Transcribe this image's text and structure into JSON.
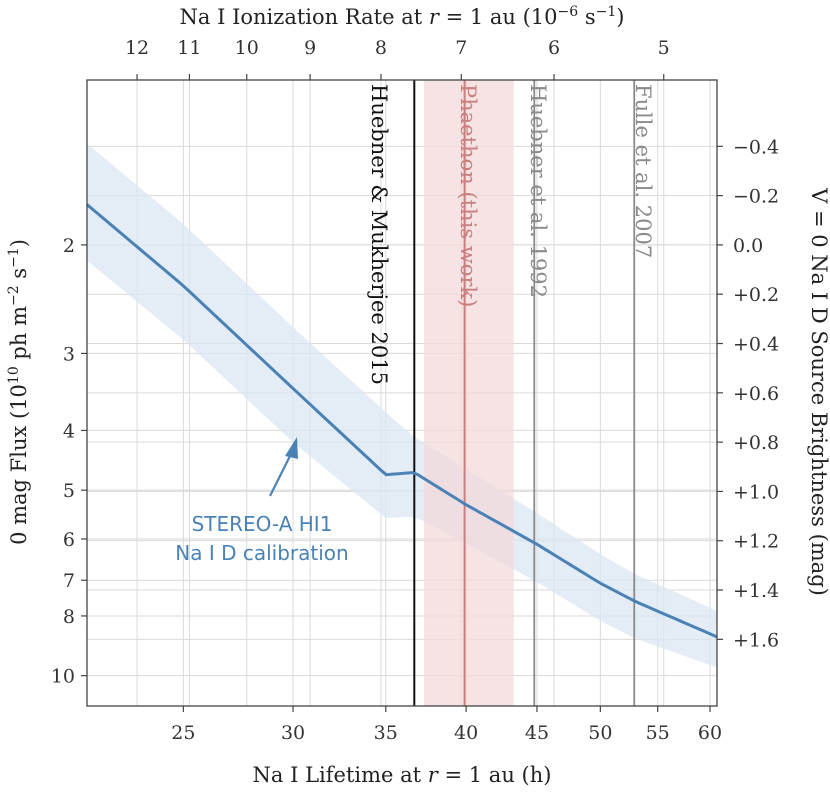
{
  "chart_data": {
    "type": "line",
    "x_axis": {
      "label": "Na I Lifetime at r = 1 au (h)",
      "label_prefix": "Na I Lifetime at ",
      "label_var": "r",
      "label_suffix": " = 1 au (h)",
      "scale": "log",
      "range": [
        21.3,
        60.7
      ],
      "ticks": [
        25,
        30,
        35,
        40,
        45,
        50,
        55,
        60
      ]
    },
    "top_axis": {
      "label_prefix": "Na I Ionization Rate at ",
      "label_var": "r",
      "label_mid": " = 1 au (10",
      "label_exp": "−6",
      "label_mid2": " s",
      "label_exp2": "−1",
      "label_end": ")",
      "ticks": [
        12,
        11,
        10,
        9,
        8,
        7,
        6,
        5
      ]
    },
    "y_axis": {
      "label_prefix": "0 mag Flux (10",
      "label_exp": "10",
      "label_mid": " ph m",
      "label_exp2": "−2",
      "label_mid2": " s",
      "label_exp3": "−1",
      "label_end": ")",
      "scale": "log",
      "range": [
        1.08,
        11.2
      ],
      "ticks": [
        2,
        3,
        4,
        5,
        6,
        7,
        8,
        10
      ]
    },
    "right_axis": {
      "label": "V = 0 Na I D Source Brightness (mag)",
      "ticks": [
        "−0.4",
        "−0.2",
        "0.0",
        "+0.2",
        "+0.4",
        "+0.6",
        "+0.8",
        "+1.0",
        "+1.2",
        "+1.4",
        "+1.6"
      ]
    },
    "series": [
      {
        "name": "STEREO-A HI1 Na I D calibration",
        "color": "#4a82b6",
        "x": [
          21.3,
          25,
          30,
          35,
          36.7,
          40,
          45,
          50,
          53,
          60.7
        ],
        "y": [
          1.72,
          2.33,
          3.42,
          4.72,
          4.68,
          5.28,
          6.12,
          7.08,
          7.58,
          8.65
        ],
        "band_low": [
          1.37,
          1.85,
          2.72,
          3.74,
          4.1,
          4.62,
          5.45,
          6.35,
          6.85,
          7.85
        ],
        "band_high": [
          2.12,
          2.85,
          4.18,
          5.55,
          5.52,
          6.1,
          7.05,
          8.15,
          8.7,
          9.7
        ]
      }
    ],
    "vertical_lines": [
      {
        "label": "Huebner & Mukherjee 2015",
        "x": 36.7,
        "color": "#111111"
      },
      {
        "label": "Phaethon (this work)",
        "x": 39.9,
        "color": "#c97f7f",
        "band": [
          37.3,
          43.3
        ]
      },
      {
        "label": "Huebner et al. 1992",
        "x": 44.8,
        "color": "#8a8a8a"
      },
      {
        "label": "Fulle et al. 2007",
        "x": 52.9,
        "color": "#8a8a8a"
      }
    ],
    "annotation": {
      "lines": [
        "STEREO-A HI1",
        "Na I D calibration"
      ],
      "points_to": "calibration curve"
    },
    "grid": true
  }
}
